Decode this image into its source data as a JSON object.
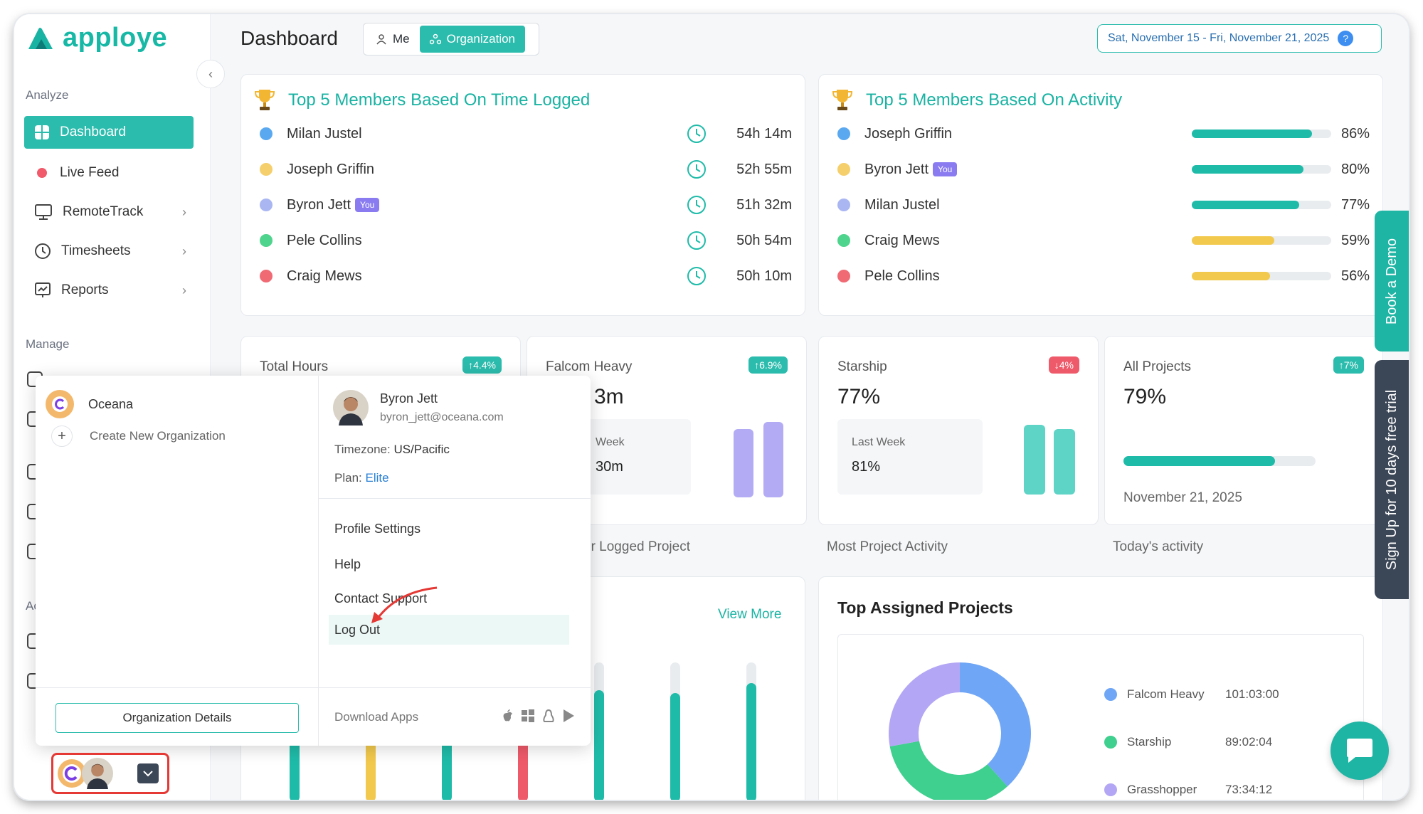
{
  "brand": {
    "name": "apploye",
    "color": "#19b3a3"
  },
  "sidebar": {
    "sections": [
      "Analyze",
      "Manage",
      "Ac"
    ],
    "items": [
      {
        "label": "Dashboard",
        "icon": "dashboard-icon"
      },
      {
        "label": "Live Feed",
        "icon": "live-dot-icon"
      },
      {
        "label": "RemoteTrack",
        "icon": "monitor-icon"
      },
      {
        "label": "Timesheets",
        "icon": "clock-icon"
      },
      {
        "label": "Reports",
        "icon": "report-icon"
      }
    ]
  },
  "header": {
    "title": "Dashboard",
    "toggle": {
      "me": "Me",
      "organization": "Organization"
    },
    "date_range": "Sat, November 15 - Fri, November 21, 2025",
    "help": "?"
  },
  "time_logged": {
    "title": "Top 5 Members Based On Time Logged",
    "members": [
      {
        "name": "Milan Justel",
        "time": "54h 14m",
        "color": "#5aa9f0",
        "you": false
      },
      {
        "name": "Joseph Griffin",
        "time": "52h 55m",
        "color": "#f5cf6c",
        "you": false
      },
      {
        "name": "Byron Jett",
        "time": "51h 32m",
        "color": "#a9b6f2",
        "you": true
      },
      {
        "name": "Pele Collins",
        "time": "50h 54m",
        "color": "#4fd48d",
        "you": false
      },
      {
        "name": "Craig Mews",
        "time": "50h 10m",
        "color": "#f06a74",
        "you": false
      }
    ],
    "you_label": "You"
  },
  "activity": {
    "title": "Top 5 Members Based On Activity",
    "members": [
      {
        "name": "Joseph Griffin",
        "pct": "86%",
        "value": 86,
        "color": "#5aa9f0",
        "bar": "#1fbba9",
        "you": false
      },
      {
        "name": "Byron Jett",
        "pct": "80%",
        "value": 80,
        "color": "#f5cf6c",
        "bar": "#1fbba9",
        "you": true
      },
      {
        "name": "Milan Justel",
        "pct": "77%",
        "value": 77,
        "color": "#a9b6f2",
        "bar": "#1fbba9",
        "you": false
      },
      {
        "name": "Craig Mews",
        "pct": "59%",
        "value": 59,
        "color": "#4fd48d",
        "bar": "#f2c94c",
        "you": false
      },
      {
        "name": "Pele Collins",
        "pct": "56%",
        "value": 56,
        "color": "#f06a74",
        "bar": "#f2c94c",
        "you": false
      }
    ]
  },
  "stats": {
    "total_hours": {
      "label": "Total Hours",
      "badge": "↑4.4%"
    },
    "falcom": {
      "label": "Falcom Heavy",
      "badge": "↑6.9%",
      "value": "3m",
      "inner_label": "Week",
      "inner_value": "30m",
      "caption": "ur Logged Project"
    },
    "starship": {
      "label": "Starship",
      "badge": "↓4%",
      "value": "77%",
      "inner_label": "Last Week",
      "inner_value": "81%",
      "caption": "Most Project Activity"
    },
    "all_projects": {
      "label": "All Projects",
      "badge": "↑7%",
      "value": "79%",
      "progress": 79,
      "date": "November 21, 2025",
      "caption": "Today's activity"
    }
  },
  "bottom_left": {
    "view_more": "View More"
  },
  "top_projects": {
    "title": "Top Assigned Projects",
    "items": [
      {
        "name": "Falcom Heavy",
        "time": "101:03:00",
        "color": "#6fa6f6",
        "value": 101.05
      },
      {
        "name": "Starship",
        "time": "89:02:04",
        "color": "#3fcf8e",
        "value": 89.03
      },
      {
        "name": "Grasshopper",
        "time": "73:34:12",
        "color": "#b3a6f4",
        "value": 73.57
      }
    ]
  },
  "popover": {
    "org_name": "Oceana",
    "create_org": "Create New Organization",
    "user_name": "Byron Jett",
    "user_email": "byron_jett@oceana.com",
    "timezone_label": "Timezone:",
    "timezone_value": "US/Pacific",
    "plan_label": "Plan:",
    "plan_value": "Elite",
    "menu": [
      "Profile Settings",
      "Help",
      "Contact Support",
      "Log Out"
    ],
    "org_details": "Organization Details",
    "download_apps": "Download Apps"
  },
  "side_tabs": {
    "demo": "Book a Demo",
    "trial": "Sign Up for 10 days free trial"
  }
}
